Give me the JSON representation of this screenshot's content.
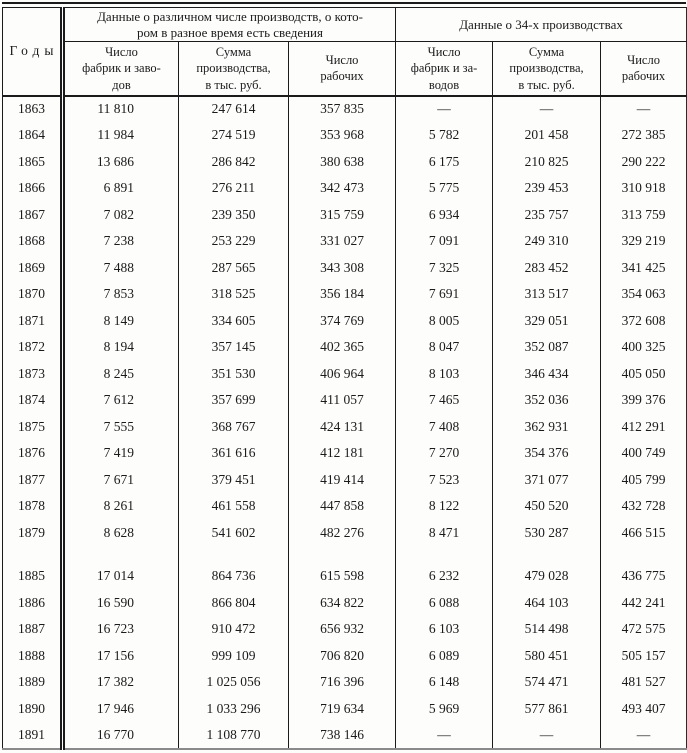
{
  "table": {
    "years_header": "Годы",
    "group1_header": "Данные о различном числе производств, о кото-\nром в разное время есть сведения",
    "group2_header": "Данные о 34-х производствах",
    "sub_headers": [
      "Число\nфабрик и заво-\nдов",
      "Сумма\nпроизводства,\nв тыс. руб.",
      "Число\nрабочих",
      "Число\nфабрик и за-\nводов",
      "Сумма\nпроизводства,\nв тыс. руб.",
      "Число\nрабочих"
    ],
    "missing_value": "—",
    "rows": [
      {
        "year": "1863",
        "cells": [
          "11 810",
          "247 614",
          "357 835",
          "—",
          "—",
          "—"
        ]
      },
      {
        "year": "1864",
        "cells": [
          "11 984",
          "274 519",
          "353 968",
          "5 782",
          "201 458",
          "272 385"
        ]
      },
      {
        "year": "1865",
        "cells": [
          "13 686",
          "286 842",
          "380 638",
          "6 175",
          "210 825",
          "290 222"
        ]
      },
      {
        "year": "1866",
        "cells": [
          "6 891",
          "276 211",
          "342 473",
          "5 775",
          "239 453",
          "310 918"
        ]
      },
      {
        "year": "1867",
        "cells": [
          "7 082",
          "239 350",
          "315 759",
          "6 934",
          "235 757",
          "313 759"
        ]
      },
      {
        "year": "1868",
        "cells": [
          "7 238",
          "253 229",
          "331 027",
          "7 091",
          "249 310",
          "329 219"
        ]
      },
      {
        "year": "1869",
        "cells": [
          "7 488",
          "287 565",
          "343 308",
          "7 325",
          "283 452",
          "341 425"
        ]
      },
      {
        "year": "1870",
        "cells": [
          "7 853",
          "318 525",
          "356 184",
          "7 691",
          "313 517",
          "354 063"
        ]
      },
      {
        "year": "1871",
        "cells": [
          "8 149",
          "334 605",
          "374 769",
          "8 005",
          "329 051",
          "372 608"
        ]
      },
      {
        "year": "1872",
        "cells": [
          "8 194",
          "357 145",
          "402 365",
          "8 047",
          "352 087",
          "400 325"
        ]
      },
      {
        "year": "1873",
        "cells": [
          "8 245",
          "351 530",
          "406 964",
          "8 103",
          "346 434",
          "405 050"
        ]
      },
      {
        "year": "1874",
        "cells": [
          "7 612",
          "357 699",
          "411 057",
          "7 465",
          "352 036",
          "399 376"
        ]
      },
      {
        "year": "1875",
        "cells": [
          "7 555",
          "368 767",
          "424 131",
          "7 408",
          "362 931",
          "412 291"
        ]
      },
      {
        "year": "1876",
        "cells": [
          "7 419",
          "361 616",
          "412 181",
          "7 270",
          "354 376",
          "400 749"
        ]
      },
      {
        "year": "1877",
        "cells": [
          "7 671",
          "379 451",
          "419 414",
          "7 523",
          "371 077",
          "405 799"
        ]
      },
      {
        "year": "1878",
        "cells": [
          "8 261",
          "461 558",
          "447 858",
          "8 122",
          "450 520",
          "432 728"
        ]
      },
      {
        "year": "1879",
        "cells": [
          "8 628",
          "541 602",
          "482 276",
          "8 471",
          "530 287",
          "466 515"
        ]
      },
      {
        "gap": true
      },
      {
        "year": "1885",
        "cells": [
          "17 014",
          "864 736",
          "615 598",
          "6 232",
          "479 028",
          "436 775"
        ]
      },
      {
        "year": "1886",
        "cells": [
          "16 590",
          "866 804",
          "634 822",
          "6 088",
          "464 103",
          "442 241"
        ]
      },
      {
        "year": "1887",
        "cells": [
          "16 723",
          "910 472",
          "656 932",
          "6 103",
          "514 498",
          "472 575"
        ]
      },
      {
        "year": "1888",
        "cells": [
          "17 156",
          "999 109",
          "706 820",
          "6 089",
          "580 451",
          "505 157"
        ]
      },
      {
        "year": "1889",
        "cells": [
          "17 382",
          "1 025 056",
          "716 396",
          "6 148",
          "574 471",
          "481 527"
        ]
      },
      {
        "year": "1890",
        "cells": [
          "17 946",
          "1 033 296",
          "719 634",
          "5 969",
          "577 861",
          "493 407"
        ]
      },
      {
        "year": "1891",
        "cells": [
          "16 770",
          "1 108 770",
          "738 146",
          "—",
          "—",
          "—"
        ]
      }
    ]
  }
}
